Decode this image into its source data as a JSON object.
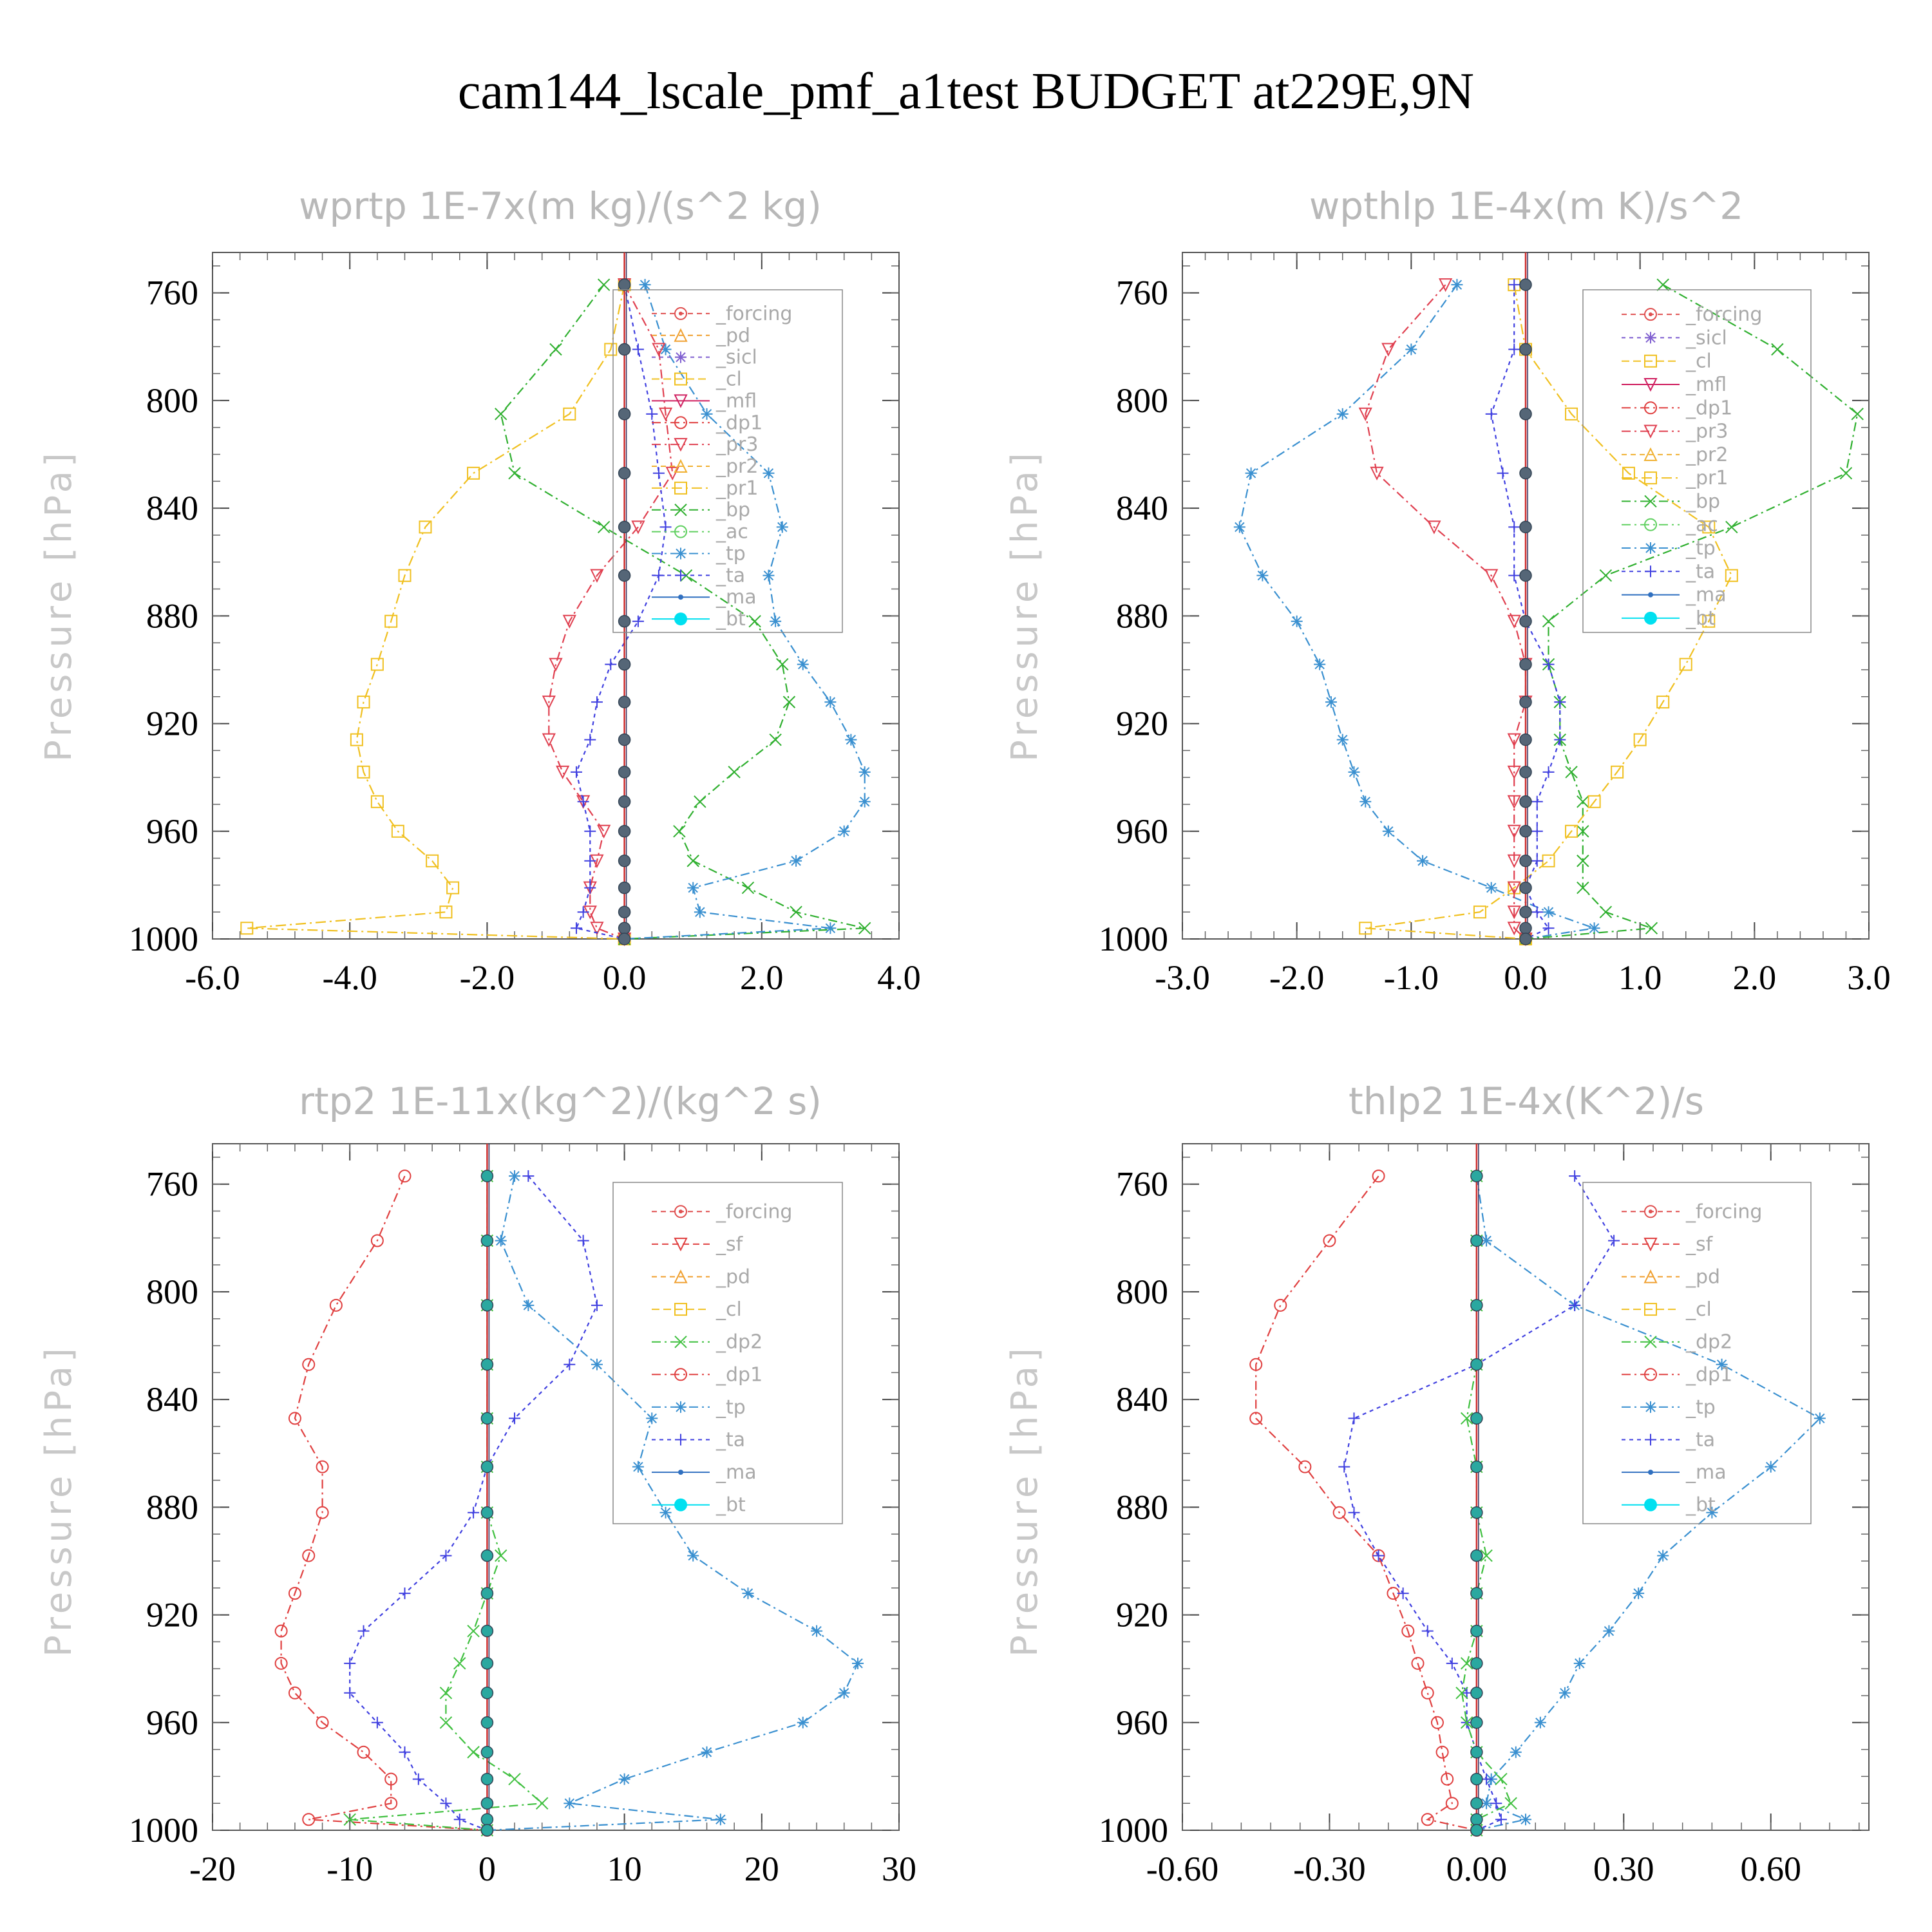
{
  "figure": {
    "title": "cam144_lscale_pmf_a1test  BUDGET at229E,9N"
  },
  "colors": {
    "forcing": "#e05050",
    "pd": "#f0a030",
    "sicl": "#8060d0",
    "cl": "#f0c020",
    "mfl": "#d02060",
    "dp1": "#e04040",
    "dp2": "#40c040",
    "pr1": "#f0c020",
    "pr2": "#f0b030",
    "pr3": "#e04050",
    "bp": "#30b030",
    "ac": "#60d060",
    "tp": "#3a90d0",
    "ta": "#4040e0",
    "ma": "#3070c0",
    "bt": "#00e0f0",
    "sf": "#e04040",
    "mid": "#556677"
  },
  "chart_data": [
    {
      "type": "line",
      "title": "wprtp  1E-7x(m kg)/(s^2 kg)",
      "ylabel": "Pressure [hPa]",
      "xlim": [
        -6,
        4
      ],
      "ylim": [
        1000,
        745
      ],
      "xticks": [
        "-6.0",
        "-4.0",
        "-2.0",
        "0.0",
        "2.0",
        "4.0"
      ],
      "yticks": [
        "760",
        "800",
        "840",
        "880",
        "920",
        "960",
        "1000"
      ],
      "legend": [
        "_forcing",
        "_pd",
        "_sicl",
        "_cl",
        "_mfl",
        "_dp1",
        "_pr3",
        "_pr2",
        "_pr1",
        "_bp",
        "_ac",
        "_tp",
        "_ta",
        "_ma",
        "_bt"
      ],
      "pressure": [
        757,
        781,
        805,
        827,
        847,
        865,
        882,
        898,
        912,
        926,
        938,
        949,
        960,
        971,
        981,
        990,
        996,
        1000
      ],
      "series": [
        {
          "name": "_pr1",
          "values": [
            0.0,
            -0.2,
            -0.8,
            -2.2,
            -2.9,
            -3.2,
            -3.4,
            -3.6,
            -3.8,
            -3.9,
            -3.8,
            -3.6,
            -3.3,
            -2.8,
            -2.5,
            -2.6,
            -5.5,
            0.0
          ]
        },
        {
          "name": "_bp",
          "values": [
            -0.3,
            -1.0,
            -1.8,
            -1.6,
            -0.3,
            0.9,
            1.9,
            2.3,
            2.4,
            2.2,
            1.6,
            1.1,
            0.8,
            1.0,
            1.8,
            2.5,
            3.5,
            0.0
          ]
        },
        {
          "name": "_tp",
          "values": [
            0.3,
            0.6,
            1.2,
            2.1,
            2.3,
            2.1,
            2.2,
            2.6,
            3.0,
            3.3,
            3.5,
            3.5,
            3.2,
            2.5,
            1.0,
            1.1,
            3.0,
            0.0
          ]
        },
        {
          "name": "_pr3",
          "values": [
            0.0,
            0.5,
            0.6,
            0.7,
            0.2,
            -0.4,
            -0.8,
            -1.0,
            -1.1,
            -1.1,
            -0.9,
            -0.6,
            -0.3,
            -0.4,
            -0.5,
            -0.5,
            -0.4,
            0.0
          ]
        },
        {
          "name": "_ta",
          "values": [
            0.0,
            0.2,
            0.4,
            0.5,
            0.6,
            0.5,
            0.2,
            -0.2,
            -0.4,
            -0.5,
            -0.7,
            -0.6,
            -0.5,
            -0.5,
            -0.5,
            -0.6,
            -0.7,
            0.0
          ]
        }
      ]
    },
    {
      "type": "line",
      "title": "wpthlp  1E-4x(m K)/s^2",
      "ylabel": "Pressure [hPa]",
      "xlim": [
        -3,
        3
      ],
      "ylim": [
        1000,
        745
      ],
      "xticks": [
        "-3.0",
        "-2.0",
        "-1.0",
        "0.0",
        "1.0",
        "2.0",
        "3.0"
      ],
      "yticks": [
        "760",
        "800",
        "840",
        "880",
        "920",
        "960",
        "1000"
      ],
      "legend": [
        "_forcing",
        "_sicl",
        "_cl",
        "_mfl",
        "_dp1",
        "_pr3",
        "_pr2",
        "_pr1",
        "_bp",
        "_ac",
        "_tp",
        "_ta",
        "_ma",
        "_bt"
      ],
      "pressure": [
        757,
        781,
        805,
        827,
        847,
        865,
        882,
        898,
        912,
        926,
        938,
        949,
        960,
        971,
        981,
        990,
        996,
        1000
      ],
      "series": [
        {
          "name": "_tp",
          "values": [
            -0.6,
            -1.0,
            -1.6,
            -2.4,
            -2.5,
            -2.3,
            -2.0,
            -1.8,
            -1.7,
            -1.6,
            -1.5,
            -1.4,
            -1.2,
            -0.9,
            -0.3,
            0.2,
            0.6,
            0.0
          ]
        },
        {
          "name": "_bp",
          "values": [
            1.2,
            2.2,
            2.9,
            2.8,
            1.8,
            0.7,
            0.2,
            0.2,
            0.3,
            0.3,
            0.4,
            0.5,
            0.5,
            0.5,
            0.5,
            0.7,
            1.1,
            0.0
          ]
        },
        {
          "name": "_pr1",
          "values": [
            -0.1,
            0.0,
            0.4,
            0.9,
            1.6,
            1.8,
            1.6,
            1.4,
            1.2,
            1.0,
            0.8,
            0.6,
            0.4,
            0.2,
            -0.1,
            -0.4,
            -1.4,
            0.0
          ]
        },
        {
          "name": "_pr3",
          "values": [
            -0.7,
            -1.2,
            -1.4,
            -1.3,
            -0.8,
            -0.3,
            -0.1,
            0.0,
            0.0,
            -0.1,
            -0.1,
            -0.1,
            -0.1,
            -0.1,
            -0.1,
            -0.1,
            -0.1,
            0.0
          ]
        },
        {
          "name": "_ta",
          "values": [
            -0.1,
            -0.1,
            -0.3,
            -0.2,
            -0.1,
            -0.1,
            0.0,
            0.2,
            0.3,
            0.3,
            0.2,
            0.1,
            0.1,
            0.1,
            0.0,
            0.1,
            0.2,
            0.0
          ]
        }
      ]
    },
    {
      "type": "line",
      "title": "rtp2  1E-11x(kg^2)/(kg^2 s)",
      "ylabel": "Pressure [hPa]",
      "xlim": [
        -20,
        30
      ],
      "ylim": [
        1000,
        745
      ],
      "xticks": [
        "-20",
        "-10",
        "0",
        "10",
        "20",
        "30"
      ],
      "yticks": [
        "760",
        "800",
        "840",
        "880",
        "920",
        "960",
        "1000"
      ],
      "legend": [
        "_forcing",
        "_sf",
        "_pd",
        "_cl",
        "_dp2",
        "_dp1",
        "_tp",
        "_ta",
        "_ma",
        "_bt"
      ],
      "pressure": [
        757,
        781,
        805,
        827,
        847,
        865,
        882,
        898,
        912,
        926,
        938,
        949,
        960,
        971,
        981,
        990,
        996,
        1000
      ],
      "series": [
        {
          "name": "_dp1",
          "values": [
            -6,
            -8,
            -11,
            -13,
            -14,
            -12,
            -12,
            -13,
            -14,
            -15,
            -15,
            -14,
            -12,
            -9,
            -7,
            -7,
            -13,
            0
          ]
        },
        {
          "name": "_tp",
          "values": [
            2,
            1,
            3,
            8,
            12,
            11,
            13,
            15,
            19,
            24,
            27,
            26,
            23,
            16,
            10,
            6,
            17,
            0
          ]
        },
        {
          "name": "_ta",
          "values": [
            3,
            7,
            8,
            6,
            2,
            0,
            -1,
            -3,
            -6,
            -9,
            -10,
            -10,
            -8,
            -6,
            -5,
            -3,
            -2,
            0
          ]
        },
        {
          "name": "_dp2",
          "values": [
            0,
            0,
            0,
            0,
            0,
            0,
            0,
            1,
            0,
            -1,
            -2,
            -3,
            -3,
            -1,
            2,
            4,
            -10,
            0
          ]
        }
      ]
    },
    {
      "type": "line",
      "title": "thlp2  1E-4x(K^2)/s",
      "ylabel": "Pressure [hPa]",
      "xlim": [
        -0.6,
        0.8
      ],
      "ylim": [
        1000,
        745
      ],
      "xticks": [
        "-0.60",
        "-0.30",
        "0.00",
        "0.30",
        "0.60"
      ],
      "yticks": [
        "760",
        "800",
        "840",
        "880",
        "920",
        "960",
        "1000"
      ],
      "legend": [
        "_forcing",
        "_sf",
        "_pd",
        "_cl",
        "_dp2",
        "_dp1",
        "_tp",
        "_ta",
        "_ma",
        "_bt"
      ],
      "pressure": [
        757,
        781,
        805,
        827,
        847,
        865,
        882,
        898,
        912,
        926,
        938,
        949,
        960,
        971,
        981,
        990,
        996,
        1000
      ],
      "series": [
        {
          "name": "_dp1",
          "values": [
            -0.2,
            -0.3,
            -0.4,
            -0.45,
            -0.45,
            -0.35,
            -0.28,
            -0.2,
            -0.17,
            -0.14,
            -0.12,
            -0.1,
            -0.08,
            -0.07,
            -0.06,
            -0.05,
            -0.1,
            0.0
          ]
        },
        {
          "name": "_tp",
          "values": [
            0.0,
            0.02,
            0.2,
            0.5,
            0.7,
            0.6,
            0.48,
            0.38,
            0.33,
            0.27,
            0.21,
            0.18,
            0.13,
            0.08,
            0.03,
            0.02,
            0.1,
            0.0
          ]
        },
        {
          "name": "_ta",
          "values": [
            0.2,
            0.28,
            0.2,
            0.0,
            -0.25,
            -0.27,
            -0.25,
            -0.2,
            -0.15,
            -0.1,
            -0.05,
            -0.02,
            -0.02,
            0.0,
            0.02,
            0.04,
            0.05,
            0.0
          ]
        },
        {
          "name": "_dp2",
          "values": [
            0.0,
            0.0,
            0.0,
            0.0,
            -0.02,
            0.0,
            0.0,
            0.02,
            0.0,
            0.0,
            -0.02,
            -0.03,
            -0.02,
            0.0,
            0.05,
            0.07,
            0.0,
            0.0
          ]
        }
      ]
    }
  ]
}
